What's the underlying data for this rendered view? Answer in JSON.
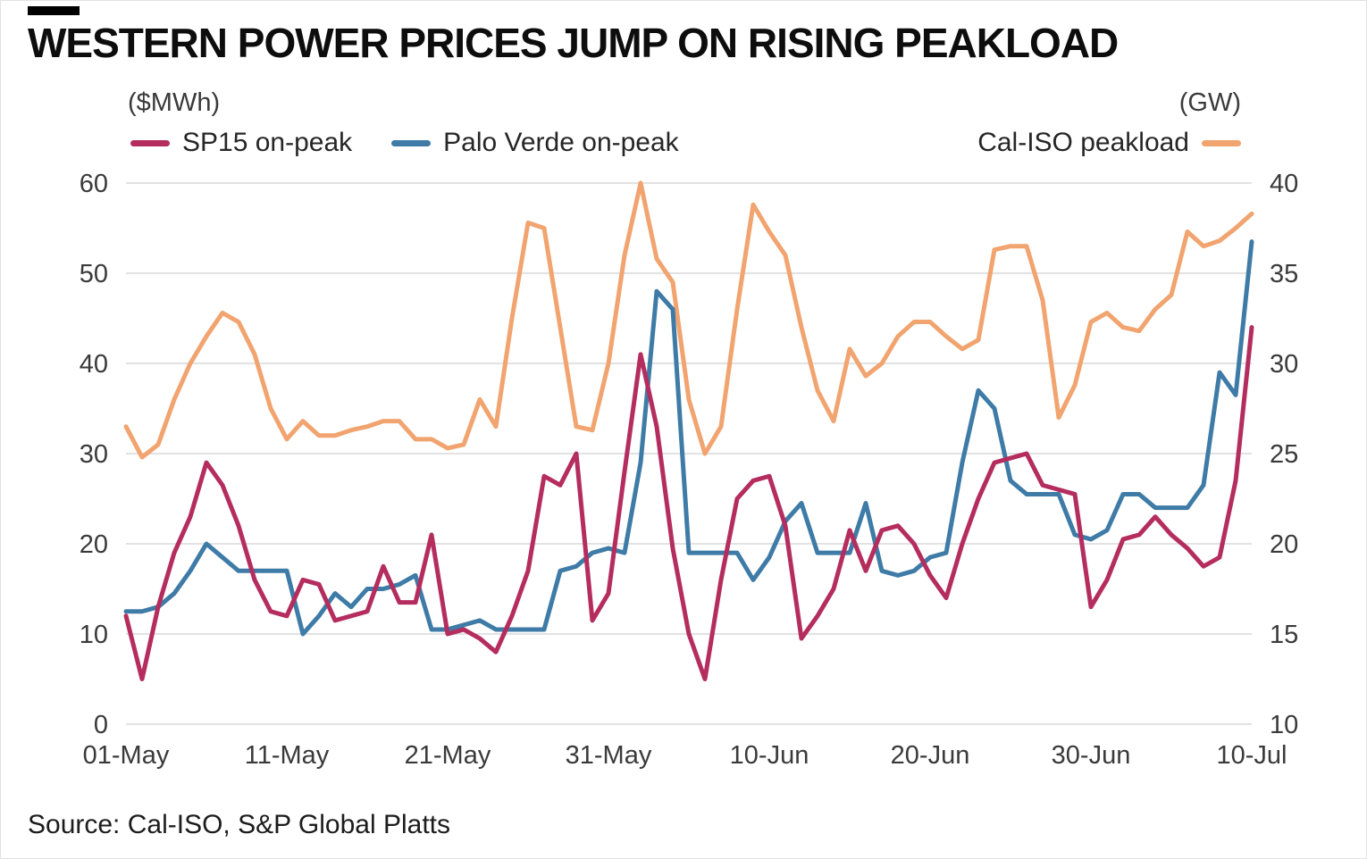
{
  "header": {
    "title": "WESTERN POWER PRICES JUMP ON RISING PEAKLOAD",
    "left_unit": "($MWh)",
    "right_unit": "(GW)"
  },
  "legend": [
    {
      "label": "SP15 on-peak",
      "color": "#b42d5e"
    },
    {
      "label": "Palo Verde on-peak",
      "color": "#3e7ba6"
    },
    {
      "label": "Cal-ISO peakload",
      "color": "#f1a46f"
    }
  ],
  "source": "Source: Cal-ISO, S&P Global Platts",
  "chart_data": {
    "type": "line",
    "title": "WESTERN POWER PRICES JUMP ON RISING PEAKLOAD",
    "grid": "horizontal",
    "grid_color": "#d8d8d8",
    "legend_position": "top",
    "left_axis": {
      "label": "($MWh)",
      "min": 0,
      "max": 60,
      "ticks": [
        0,
        10,
        20,
        30,
        40,
        50,
        60
      ]
    },
    "right_axis": {
      "label": "(GW)",
      "min": 10,
      "max": 40,
      "ticks": [
        10,
        15,
        20,
        25,
        30,
        35,
        40
      ]
    },
    "x_ticks": [
      {
        "index": 0,
        "label": "01-May"
      },
      {
        "index": 10,
        "label": "11-May"
      },
      {
        "index": 20,
        "label": "21-May"
      },
      {
        "index": 30,
        "label": "31-May"
      },
      {
        "index": 40,
        "label": "10-Jun"
      },
      {
        "index": 50,
        "label": "20-Jun"
      },
      {
        "index": 60,
        "label": "30-Jun"
      },
      {
        "index": 70,
        "label": "10-Jul"
      }
    ],
    "x_range_note": "daily values from 01-May to 10-Jul (71 points)",
    "series": [
      {
        "name": "SP15 on-peak",
        "axis": "left",
        "unit": "$/MWh",
        "color": "#b42d5e",
        "values": [
          12,
          5,
          13,
          19,
          23,
          29,
          26.5,
          22,
          16,
          12.5,
          12,
          16,
          15.5,
          11.5,
          12,
          12.5,
          17.5,
          13.5,
          13.5,
          21,
          10,
          10.5,
          9.5,
          8,
          12,
          17,
          27.5,
          26.5,
          30,
          11.5,
          14.5,
          28,
          41,
          33,
          19.5,
          10,
          5,
          16,
          25,
          27,
          27.5,
          22,
          9.5,
          12,
          15,
          21.5,
          17,
          21.5,
          22,
          20,
          16.5,
          14,
          20,
          25,
          29,
          29.5,
          30,
          26.5,
          26,
          25.5,
          13,
          16,
          20.5,
          21,
          23,
          21,
          19.5,
          17.5,
          18.5,
          27,
          44
        ]
      },
      {
        "name": "Palo Verde on-peak",
        "axis": "left",
        "unit": "$/MWh",
        "color": "#3e7ba6",
        "values": [
          12.5,
          12.5,
          13,
          14.5,
          17,
          20,
          18.5,
          17,
          17,
          17,
          17,
          10,
          12,
          14.5,
          13,
          15,
          15,
          15.5,
          16.5,
          10.5,
          10.5,
          11,
          11.5,
          10.5,
          10.5,
          10.5,
          10.5,
          17,
          17.5,
          19,
          19.5,
          19,
          29,
          48,
          46,
          19,
          19,
          19,
          19,
          16,
          18.5,
          22.5,
          24.5,
          19,
          19,
          19,
          24.5,
          17,
          16.5,
          17,
          18.5,
          19,
          29,
          37,
          35,
          27,
          25.5,
          25.5,
          25.5,
          21,
          20.5,
          21.5,
          25.5,
          25.5,
          24,
          24,
          24,
          26.5,
          39,
          36.5,
          53.5
        ]
      },
      {
        "name": "Cal-ISO peakload",
        "axis": "right",
        "unit": "GW",
        "color": "#f1a46f",
        "values": [
          26.5,
          24.8,
          25.5,
          28,
          30,
          31.5,
          32.8,
          32.3,
          30.5,
          27.5,
          25.8,
          26.8,
          26,
          26,
          26.3,
          26.5,
          26.8,
          26.8,
          25.8,
          25.8,
          25.3,
          25.5,
          28,
          26.5,
          32.5,
          37.8,
          37.5,
          32,
          26.5,
          26.3,
          30,
          36,
          40,
          35.8,
          34.5,
          28,
          25,
          26.5,
          33,
          38.8,
          37.3,
          36,
          32,
          28.5,
          26.8,
          30.8,
          29.3,
          30,
          31.5,
          32.3,
          32.3,
          31.5,
          30.8,
          31.3,
          36.3,
          36.5,
          36.5,
          33.5,
          27,
          28.8,
          32.3,
          32.8,
          32,
          31.8,
          33,
          33.8,
          37.3,
          36.5,
          36.8,
          37.5,
          38.3
        ]
      }
    ]
  }
}
